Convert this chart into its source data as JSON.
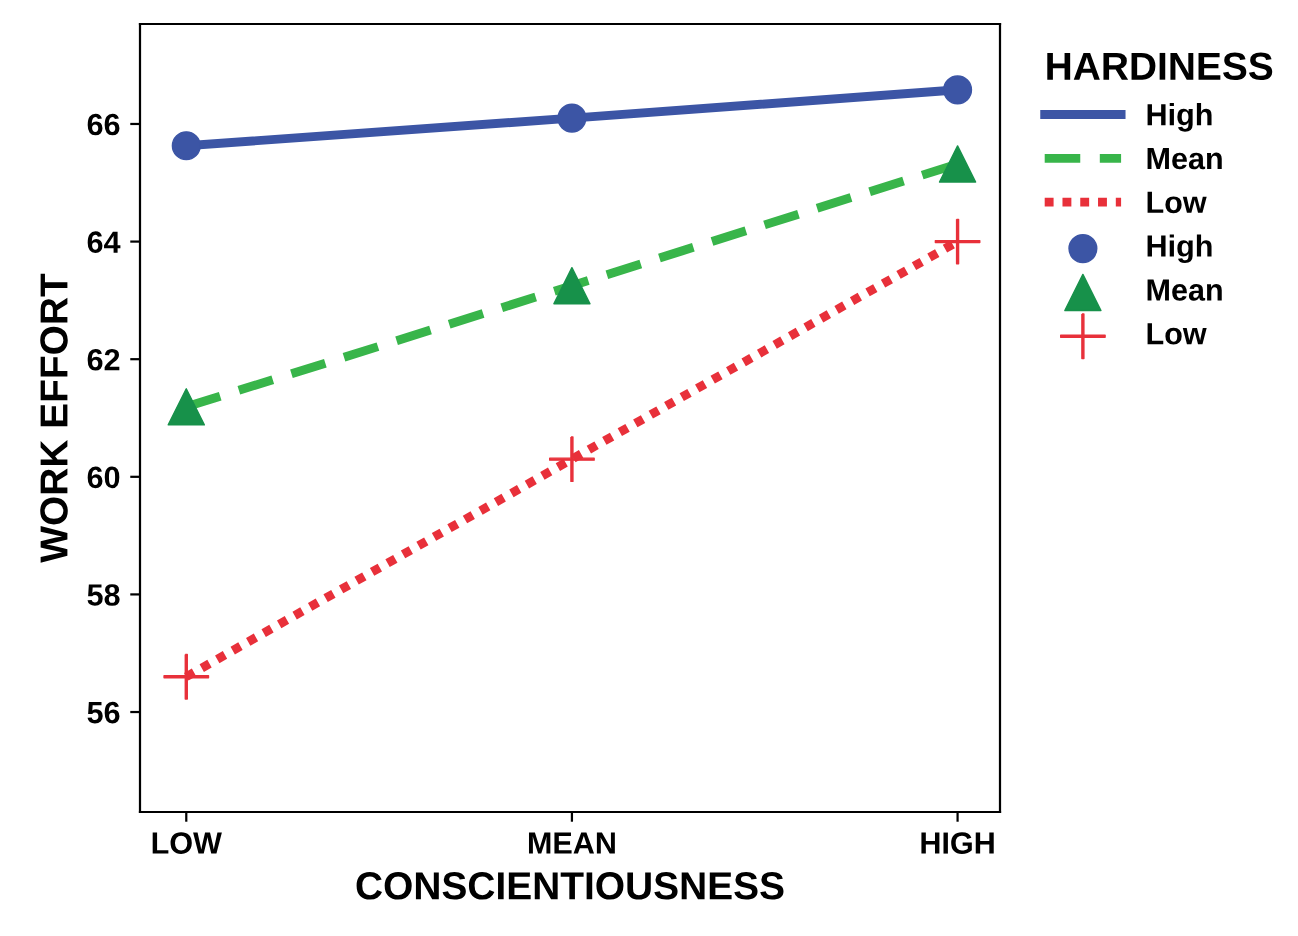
{
  "chart_data": {
    "type": "line",
    "xlabel": "CONSCIENTIOUSNESS",
    "ylabel": "WORK EFFORT",
    "legend_title": "HARDINESS",
    "categories": [
      "LOW",
      "MEAN",
      "HIGH"
    ],
    "ylim": [
      54.3,
      67.7
    ],
    "yticks": [
      56,
      58,
      60,
      62,
      64,
      66
    ],
    "grid": false,
    "legend": "right",
    "series": [
      {
        "name": "High",
        "color": "#3c55a5",
        "line_style": "solid",
        "marker": "none",
        "values": [
          65.63,
          66.1,
          66.58
        ]
      },
      {
        "name": "Mean",
        "color": "#38b54a",
        "line_style": "dashed",
        "marker": "none",
        "values": [
          61.19,
          63.25,
          65.32
        ]
      },
      {
        "name": "Low",
        "color": "#e8303a",
        "line_style": "dotted",
        "marker": "none",
        "values": [
          56.6,
          60.3,
          64.0
        ]
      },
      {
        "name": "High",
        "type": "scatter",
        "color": "#3c55a5",
        "marker": "circle",
        "values": [
          65.63,
          66.1,
          66.58
        ]
      },
      {
        "name": "Mean",
        "type": "scatter",
        "color": "#17914a",
        "marker": "triangle",
        "values": [
          61.19,
          63.25,
          65.32
        ]
      },
      {
        "name": "Low",
        "type": "scatter",
        "color": "#e8303a",
        "marker": "cross",
        "values": [
          56.6,
          60.3,
          64.0
        ]
      }
    ]
  }
}
